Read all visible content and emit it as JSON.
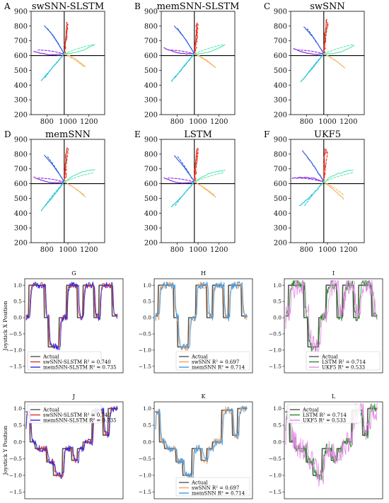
{
  "chart_data": [
    {
      "panel": "A",
      "type": "line",
      "title": "swSNN-SLSTM",
      "xlim": [
        650,
        1350
      ],
      "ylim": [
        200,
        900
      ],
      "xticks": [
        "800",
        "1000",
        "1200"
      ],
      "yticks": [
        "200",
        "300",
        "400",
        "500",
        "600",
        "700",
        "800",
        "900"
      ]
    },
    {
      "panel": "B",
      "type": "line",
      "title": "memSNN-SLSTM",
      "xlim": [
        650,
        1350
      ],
      "ylim": [
        200,
        900
      ],
      "xticks": [
        "800",
        "1000",
        "1200"
      ],
      "yticks": [
        "200",
        "300",
        "400",
        "500",
        "600",
        "700",
        "800",
        "900"
      ]
    },
    {
      "panel": "C",
      "type": "line",
      "title": "swSNN",
      "xlim": [
        650,
        1350
      ],
      "ylim": [
        200,
        900
      ],
      "xticks": [
        "800",
        "1000",
        "1200"
      ],
      "yticks": [
        "200",
        "300",
        "400",
        "500",
        "600",
        "700",
        "800",
        "900"
      ]
    },
    {
      "panel": "D",
      "type": "line",
      "title": "memSNN",
      "xlim": [
        650,
        1350
      ],
      "ylim": [
        200,
        900
      ],
      "xticks": [
        "800",
        "1000",
        "1200"
      ],
      "yticks": [
        "200",
        "300",
        "400",
        "500",
        "600",
        "700",
        "800",
        "900"
      ]
    },
    {
      "panel": "E",
      "type": "line",
      "title": "LSTM",
      "xlim": [
        650,
        1350
      ],
      "ylim": [
        200,
        900
      ],
      "xticks": [
        "800",
        "1000",
        "1200"
      ],
      "yticks": [
        "200",
        "300",
        "400",
        "500",
        "600",
        "700",
        "800",
        "900"
      ]
    },
    {
      "panel": "F",
      "type": "line",
      "title": "UKF5",
      "xlim": [
        650,
        1350
      ],
      "ylim": [
        200,
        900
      ],
      "xticks": [
        "800",
        "1000",
        "1200"
      ],
      "yticks": [
        "200",
        "300",
        "400",
        "500",
        "600",
        "700",
        "800",
        "900"
      ]
    },
    {
      "panel": "G",
      "type": "line",
      "ylim": [
        -1.7,
        1.2
      ],
      "ylabel": "Joystick X Position",
      "yticks": [
        "1.0",
        "0.5",
        "0.0",
        "−0.5",
        "−1.0",
        "−1.5"
      ],
      "legend": [
        "Actual",
        "swSNN-SLSTM R² = 0.740",
        "memSNN-SLSTM R² = 0.735"
      ],
      "legend_loc": "lower-left"
    },
    {
      "panel": "H",
      "type": "line",
      "ylim": [
        -1.7,
        1.2
      ],
      "yticks": [
        "1.0",
        "0.5",
        "0.0",
        "−0.5",
        "−1.0",
        "−1.5"
      ],
      "legend": [
        "Actual",
        "swSNN R² = 0.697",
        "memSNN R² = 0.714"
      ],
      "legend_loc": "lower-right"
    },
    {
      "panel": "I",
      "type": "line",
      "ylim": [
        -1.7,
        1.2
      ],
      "yticks": [
        "1.0",
        "0.5",
        "0.0",
        "−0.5",
        "−1.0",
        "−1.5"
      ],
      "legend": [
        "Actual",
        "LSTM R² = 0.714",
        "UKF5 R² = 0.533"
      ],
      "legend_loc": "lower-right"
    },
    {
      "panel": "J",
      "type": "line",
      "ylim": [
        -1.7,
        1.2
      ],
      "ylabel": "Joystick Y Position",
      "yticks": [
        "1.0",
        "0.5",
        "0.0",
        "−0.5",
        "−1.0",
        "−1.5"
      ],
      "legend": [
        "Actual",
        "swSNN-SLSTM R² = 0.740",
        "memSNN-SLSTM R² = 0.735"
      ],
      "legend_loc": "upper-left"
    },
    {
      "panel": "K",
      "type": "line",
      "ylim": [
        -1.7,
        1.2
      ],
      "yticks": [
        "1.0",
        "0.5",
        "0.0",
        "−0.5",
        "−1.0",
        "−1.5"
      ],
      "legend": [
        "Actual",
        "swSNN R² = 0.697",
        "memSNN R² = 0.714"
      ],
      "legend_loc": "lower-right"
    },
    {
      "panel": "L",
      "type": "line",
      "ylim": [
        -1.7,
        1.2
      ],
      "yticks": [
        "1.0",
        "0.5",
        "0.0",
        "−0.5",
        "−1.0",
        "−1.5"
      ],
      "legend": [
        "Actual",
        "LSTM R² = 0.714",
        "UKF5 R² = 0.533"
      ],
      "legend_loc": "upper-left"
    }
  ],
  "colors": {
    "actual": "#555555",
    "swSNN-SLSTM": "#e8321f",
    "memSNN-SLSTM": "#2a2ae6",
    "swSNN": "#f4a060",
    "memSNN": "#3a9be8",
    "LSTM": "#1f8f1f",
    "UKF5": "#e58ae5",
    "traj_up": "#e8321f",
    "traj_upleft": "#3060e0",
    "traj_left": "#8a2be2",
    "traj_downleft": "#22c6d8",
    "traj_downright": "#f0b868",
    "traj_right": "#5ee8b0"
  }
}
